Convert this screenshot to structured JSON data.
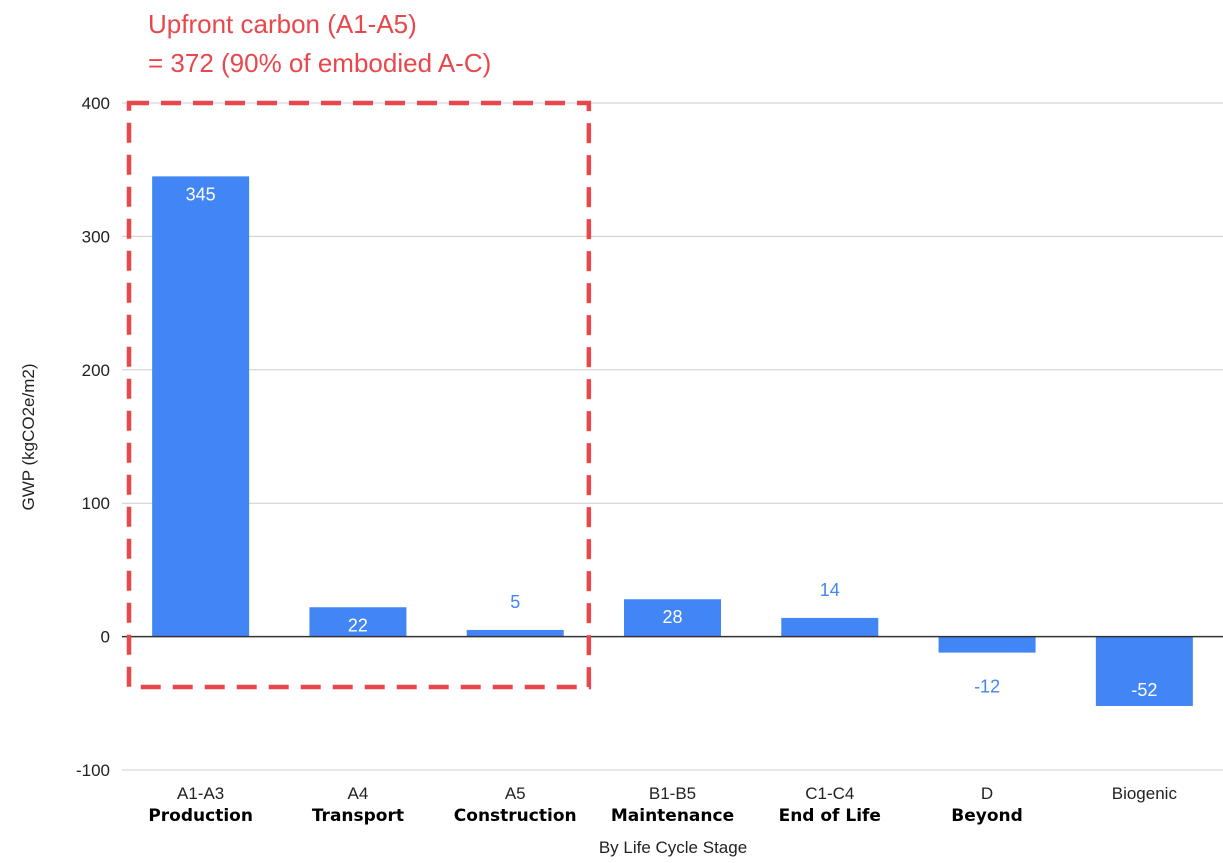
{
  "chart_data": {
    "type": "bar",
    "categories": [
      {
        "code": "A1-A3",
        "name": "Production"
      },
      {
        "code": "A4",
        "name": "Transport"
      },
      {
        "code": "A5",
        "name": "Construction"
      },
      {
        "code": "B1-B5",
        "name": "Maintenance"
      },
      {
        "code": "C1-C4",
        "name": "End of Life"
      },
      {
        "code": "D",
        "name": "Beyond"
      },
      {
        "code": "Biogenic",
        "name": ""
      }
    ],
    "values": [
      345,
      22,
      5,
      28,
      14,
      -12,
      -52
    ],
    "value_labels": [
      "345",
      "22",
      "5",
      "28",
      "14",
      "-12",
      "-52"
    ],
    "xlabel": "By Life Cycle Stage",
    "ylabel": "GWP (kgCO2e/m2)",
    "ylim": [
      -100,
      400
    ],
    "yticks": [
      "-100",
      "0",
      "100",
      "200",
      "300",
      "400"
    ],
    "grid": true,
    "annotation": {
      "line1": "Upfront carbon (A1-A5)",
      "line2": "= 372 (90% of embodied A-C)",
      "covers": [
        "A1-A3",
        "A4",
        "A5"
      ]
    },
    "colors": {
      "bar": "#4285f4",
      "label_inside": "#ffffff",
      "label_outside": "#4285f4",
      "annotation": "#e8474c",
      "grid": "#cccccc",
      "zero_line": "#333333"
    }
  }
}
